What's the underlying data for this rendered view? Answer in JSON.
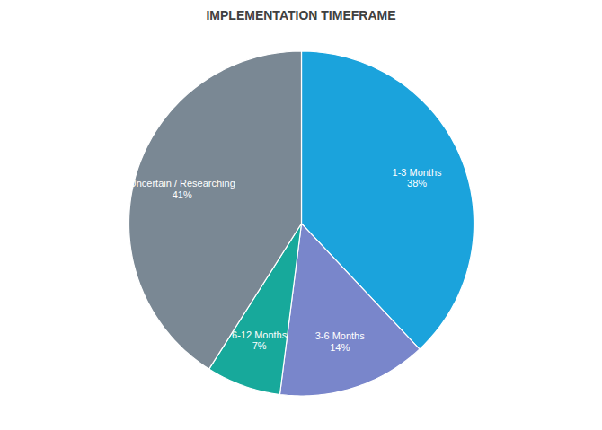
{
  "chart_data": {
    "type": "pie",
    "title": "IMPLEMENTATION TIMEFRAME",
    "categories": [
      "1-3 Months",
      "3-6 Months",
      "6-12 Months",
      "Uncertain / Researching"
    ],
    "values": [
      38,
      14,
      7,
      41
    ],
    "value_labels": [
      "38%",
      "14%",
      "7%",
      "41%"
    ],
    "colors": [
      "#1ba3dc",
      "#7986cb",
      "#17a99b",
      "#7a8894"
    ],
    "data_labels": true
  }
}
